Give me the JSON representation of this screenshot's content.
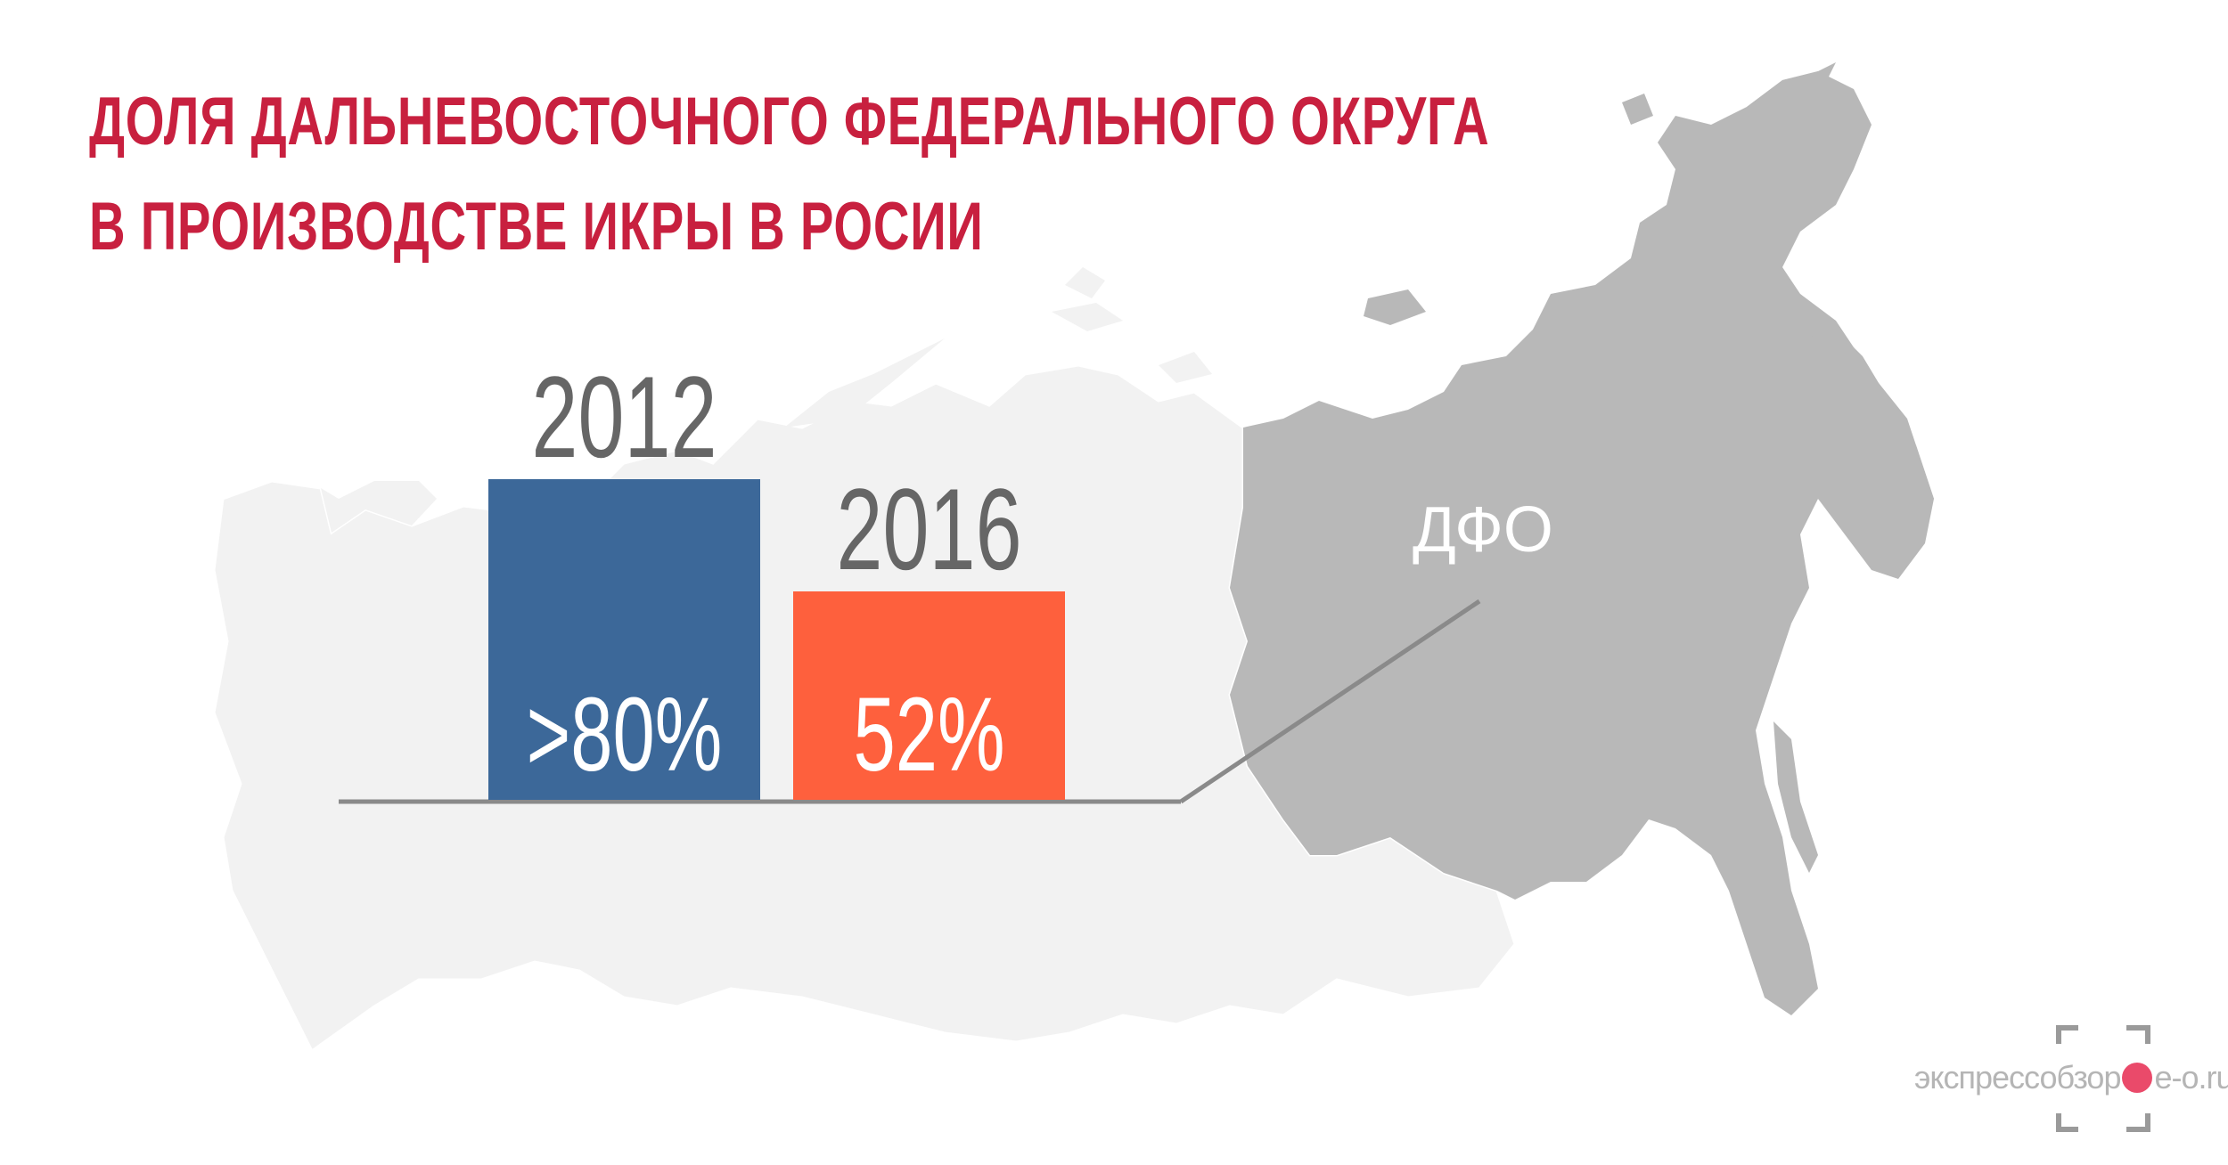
{
  "title": {
    "line1": "ДОЛЯ ДАЛЬНЕВОСТОЧНОГО ФЕДЕРАЛЬНОГО ОКРУГА",
    "line2": "В ПРОИЗВОДСТВЕ ИКРЫ В РОСИИ"
  },
  "map": {
    "highlight_label": "ДФО"
  },
  "chart_data": {
    "type": "bar",
    "title": "ДОЛЯ ДАЛЬНЕВОСТОЧНОГО ФЕДЕРАЛЬНОГО ОКРУГА В ПРОИЗВОДСТВЕ ИКРЫ В РОСИИ",
    "categories": [
      "2012",
      "2016"
    ],
    "values": [
      80,
      52
    ],
    "data_labels": [
      ">80%",
      "52%"
    ],
    "ylim": [
      0,
      100
    ],
    "grid": false,
    "legend": "none"
  },
  "watermark": {
    "text_left": "экспрессобзор",
    "text_right": "e-o.ru"
  },
  "colors": {
    "title": "#c8203f",
    "bar_2012": "#3c6899",
    "bar_2016": "#fe603d",
    "map_light": "#f2f2f2",
    "map_highlight": "#b8b8b8",
    "baseline": "#8a8a8a",
    "year_text": "#666666",
    "logo_dot": "#ea4a6a"
  }
}
